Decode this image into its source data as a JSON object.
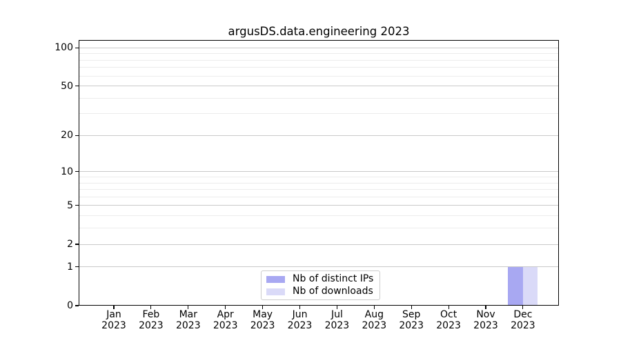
{
  "chart_data": {
    "type": "bar",
    "title": "argusDS.data.engineering 2023",
    "xlabel": "",
    "ylabel": "",
    "categories": [
      {
        "month": "Jan",
        "year": "2023"
      },
      {
        "month": "Feb",
        "year": "2023"
      },
      {
        "month": "Mar",
        "year": "2023"
      },
      {
        "month": "Apr",
        "year": "2023"
      },
      {
        "month": "May",
        "year": "2023"
      },
      {
        "month": "Jun",
        "year": "2023"
      },
      {
        "month": "Jul",
        "year": "2023"
      },
      {
        "month": "Aug",
        "year": "2023"
      },
      {
        "month": "Sep",
        "year": "2023"
      },
      {
        "month": "Oct",
        "year": "2023"
      },
      {
        "month": "Nov",
        "year": "2023"
      },
      {
        "month": "Dec",
        "year": "2023"
      }
    ],
    "series": [
      {
        "name": "Nb of distinct IPs",
        "color": "#a8a8f2",
        "values": [
          0,
          0,
          0,
          0,
          0,
          0,
          0,
          0,
          0,
          0,
          0,
          1
        ]
      },
      {
        "name": "Nb of downloads",
        "color": "#dadaf8",
        "values": [
          0,
          0,
          0,
          0,
          0,
          0,
          0,
          0,
          0,
          0,
          0,
          1
        ]
      }
    ],
    "y_scale": "log1p",
    "ylim": [
      0,
      115
    ],
    "y_major_ticks": [
      0,
      1,
      2,
      5,
      10,
      20,
      50,
      100
    ],
    "y_minor_ticks": [
      3,
      4,
      6,
      7,
      8,
      9,
      30,
      40,
      60,
      70,
      80,
      90
    ],
    "grid": true,
    "legend_position": "lower center",
    "colors": {
      "background": "#ffffff",
      "spine": "#000000",
      "text": "#000000",
      "grid_major": "#c9c9c9",
      "grid_minor": "#ececec",
      "legend_border": "#cccccc"
    }
  }
}
